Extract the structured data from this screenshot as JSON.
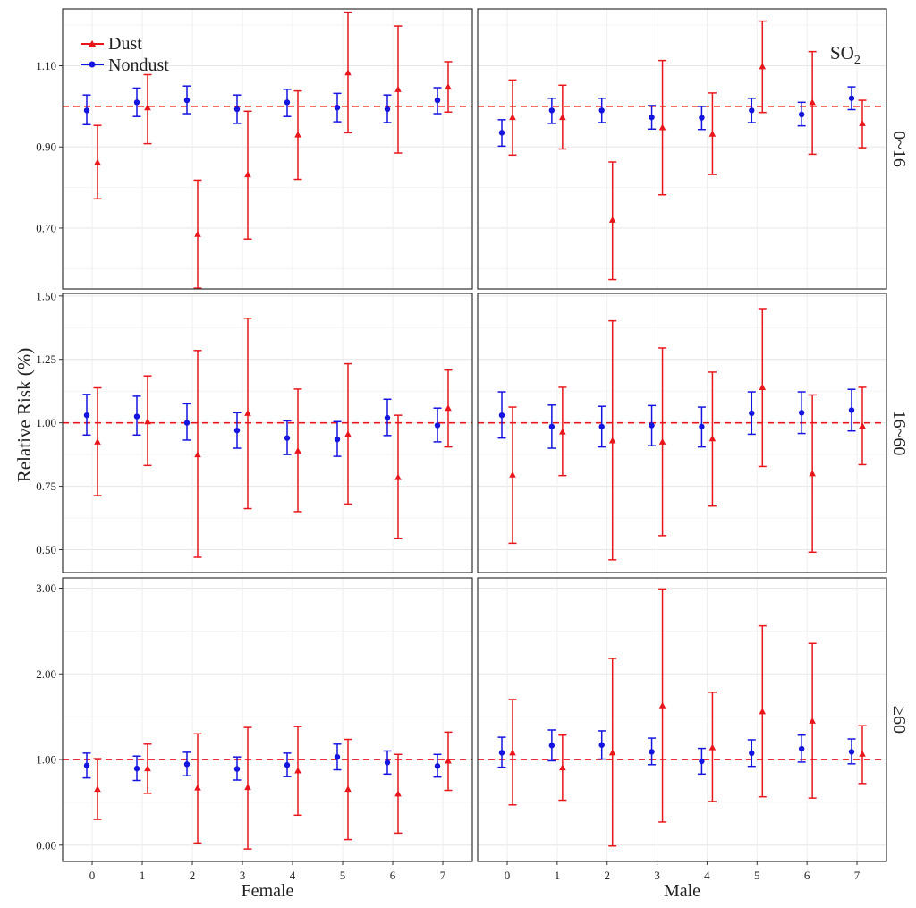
{
  "chart_data": {
    "type": "scatter",
    "title": "",
    "ylabel": "Relative Risk (%)",
    "pollutant_label": "SO",
    "pollutant_sub": "2",
    "x": [
      0,
      1,
      2,
      3,
      4,
      5,
      6,
      7
    ],
    "x_tick_labels": [
      "0",
      "1",
      "2",
      "3",
      "4",
      "5",
      "6",
      "7"
    ],
    "columns": [
      "Female",
      "Male"
    ],
    "rows": [
      "0~16",
      "16~60",
      "≥60"
    ],
    "legend": {
      "position": "top-left",
      "entries": [
        "Dust",
        "Nondust"
      ]
    },
    "colors": {
      "Dust": "#e8161b",
      "Nondust": "#1414e0",
      "reference": "#e8161b"
    },
    "reference_line": 1.0,
    "grid": true,
    "panels": [
      {
        "row": "0~16",
        "column": "Female",
        "ylim": [
          0.55,
          1.24
        ],
        "yticks": [
          0.7,
          0.9,
          1.1
        ],
        "ytick_labels": [
          "0.70",
          "0.90",
          "1.10"
        ],
        "series": [
          {
            "name": "Nondust",
            "est": [
              0.99,
              1.01,
              1.015,
              0.993,
              1.01,
              0.997,
              0.993,
              1.015
            ],
            "lo": [
              0.955,
              0.975,
              0.982,
              0.958,
              0.975,
              0.962,
              0.96,
              0.982
            ],
            "hi": [
              1.028,
              1.045,
              1.05,
              1.028,
              1.042,
              1.032,
              1.028,
              1.046
            ]
          },
          {
            "name": "Dust",
            "est": [
              0.862,
              0.997,
              0.685,
              0.832,
              0.93,
              1.083,
              1.042,
              1.048
            ],
            "lo": [
              0.772,
              0.908,
              0.552,
              0.673,
              0.82,
              0.935,
              0.885,
              0.986
            ],
            "hi": [
              0.953,
              1.078,
              0.818,
              0.988,
              1.038,
              1.232,
              1.198,
              1.11
            ]
          }
        ]
      },
      {
        "row": "0~16",
        "column": "Male",
        "ylim": [
          0.55,
          1.24
        ],
        "yticks": [
          0.7,
          0.9,
          1.1
        ],
        "ytick_labels": [
          "0.70",
          "0.90",
          "1.10"
        ],
        "series": [
          {
            "name": "Nondust",
            "est": [
              0.935,
              0.99,
              0.99,
              0.973,
              0.972,
              0.99,
              0.98,
              1.02
            ],
            "lo": [
              0.902,
              0.958,
              0.96,
              0.944,
              0.943,
              0.96,
              0.952,
              0.992
            ],
            "hi": [
              0.967,
              1.02,
              1.02,
              1.002,
              1.0,
              1.02,
              1.01,
              1.048
            ]
          },
          {
            "name": "Dust",
            "est": [
              0.973,
              0.973,
              0.72,
              0.948,
              0.932,
              1.098,
              1.01,
              0.958
            ],
            "lo": [
              0.88,
              0.895,
              0.573,
              0.782,
              0.832,
              0.985,
              0.882,
              0.898
            ],
            "hi": [
              1.065,
              1.052,
              0.863,
              1.113,
              1.033,
              1.21,
              1.135,
              1.015
            ]
          }
        ]
      },
      {
        "row": "16~60",
        "column": "Female",
        "ylim": [
          0.41,
          1.51
        ],
        "yticks": [
          0.5,
          0.75,
          1.0,
          1.25,
          1.5
        ],
        "ytick_labels": [
          "0.50",
          "0.75",
          "1.00",
          "1.25",
          "1.50"
        ],
        "series": [
          {
            "name": "Nondust",
            "est": [
              1.03,
              1.025,
              1.0,
              0.97,
              0.94,
              0.935,
              1.02,
              0.99
            ],
            "lo": [
              0.952,
              0.952,
              0.932,
              0.9,
              0.875,
              0.868,
              0.95,
              0.925
            ],
            "hi": [
              1.112,
              1.105,
              1.075,
              1.04,
              1.008,
              1.005,
              1.093,
              1.058
            ]
          },
          {
            "name": "Dust",
            "est": [
              0.925,
              1.005,
              0.875,
              1.038,
              0.89,
              0.955,
              0.785,
              1.058
            ],
            "lo": [
              0.713,
              0.832,
              0.47,
              0.662,
              0.65,
              0.68,
              0.545,
              0.905
            ],
            "hi": [
              1.138,
              1.185,
              1.285,
              1.412,
              1.133,
              1.233,
              1.03,
              1.208
            ]
          }
        ]
      },
      {
        "row": "16~60",
        "column": "Male",
        "ylim": [
          0.41,
          1.51
        ],
        "yticks": [
          0.5,
          0.75,
          1.0,
          1.25,
          1.5
        ],
        "ytick_labels": [
          "0.50",
          "0.75",
          "1.00",
          "1.25",
          "1.50"
        ],
        "series": [
          {
            "name": "Nondust",
            "est": [
              1.03,
              0.985,
              0.985,
              0.99,
              0.985,
              1.038,
              1.04,
              1.05
            ],
            "lo": [
              0.94,
              0.9,
              0.905,
              0.91,
              0.905,
              0.955,
              0.958,
              0.968
            ],
            "hi": [
              1.122,
              1.07,
              1.065,
              1.068,
              1.062,
              1.122,
              1.122,
              1.132
            ]
          },
          {
            "name": "Dust",
            "est": [
              0.795,
              0.965,
              0.93,
              0.925,
              0.938,
              1.14,
              0.8,
              0.988
            ],
            "lo": [
              0.525,
              0.792,
              0.46,
              0.555,
              0.672,
              0.828,
              0.49,
              0.835
            ],
            "hi": [
              1.062,
              1.14,
              1.402,
              1.295,
              1.2,
              1.45,
              1.11,
              1.14
            ]
          }
        ]
      },
      {
        "row": "≥60",
        "column": "Female",
        "ylim": [
          -0.19,
          3.12
        ],
        "yticks": [
          0.0,
          1.0,
          2.0,
          3.0
        ],
        "ytick_labels": [
          "0.00",
          "1.00",
          "2.00",
          "3.00"
        ],
        "series": [
          {
            "name": "Nondust",
            "est": [
              0.93,
              0.895,
              0.945,
              0.89,
              0.935,
              1.03,
              0.965,
              0.925
            ],
            "lo": [
              0.785,
              0.755,
              0.81,
              0.76,
              0.8,
              0.88,
              0.83,
              0.795
            ],
            "hi": [
              1.075,
              1.04,
              1.085,
              1.03,
              1.075,
              1.18,
              1.1,
              1.06
            ]
          },
          {
            "name": "Dust",
            "est": [
              0.655,
              0.895,
              0.67,
              0.675,
              0.87,
              0.655,
              0.6,
              0.985
            ],
            "lo": [
              0.3,
              0.605,
              0.025,
              -0.045,
              0.35,
              0.065,
              0.14,
              0.64
            ],
            "hi": [
              1.01,
              1.18,
              1.3,
              1.375,
              1.385,
              1.235,
              1.06,
              1.32
            ]
          }
        ]
      },
      {
        "row": "≥60",
        "column": "Male",
        "ylim": [
          -0.19,
          3.12
        ],
        "yticks": [
          0.0,
          1.0,
          2.0,
          3.0
        ],
        "ytick_labels": [
          "0.00",
          "1.00",
          "2.00",
          "3.00"
        ],
        "series": [
          {
            "name": "Nondust",
            "est": [
              1.08,
              1.165,
              1.17,
              1.09,
              0.98,
              1.075,
              1.125,
              1.09
            ],
            "lo": [
              0.91,
              0.985,
              1.005,
              0.94,
              0.83,
              0.92,
              0.97,
              0.95
            ],
            "hi": [
              1.26,
              1.345,
              1.335,
              1.25,
              1.13,
              1.23,
              1.285,
              1.24
            ]
          },
          {
            "name": "Dust",
            "est": [
              1.08,
              0.905,
              1.08,
              1.63,
              1.14,
              1.56,
              1.45,
              1.065
            ],
            "lo": [
              0.47,
              0.525,
              -0.01,
              0.27,
              0.51,
              0.565,
              0.55,
              0.72
            ],
            "hi": [
              1.7,
              1.285,
              2.18,
              2.99,
              1.785,
              2.56,
              2.355,
              1.395
            ]
          }
        ]
      }
    ]
  }
}
